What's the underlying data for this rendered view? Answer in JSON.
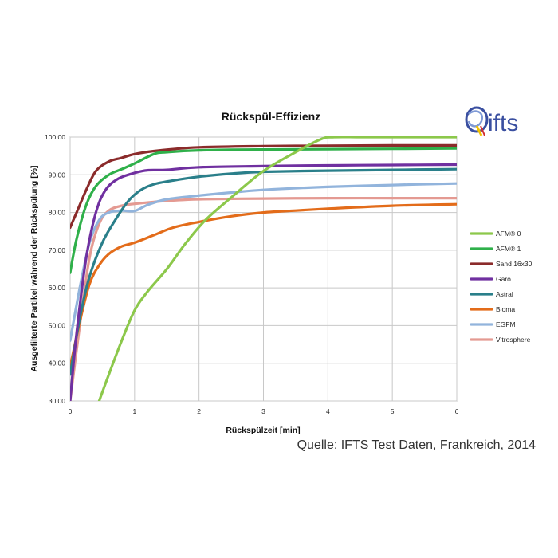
{
  "source_note": "Quelle: IFTS Test Daten, Frankreich, 2014",
  "logo": {
    "text": "ifts",
    "colors": {
      "blue": "#3a4fa0",
      "yellow": "#f2c200",
      "red": "#d32f2f"
    }
  },
  "chart_data": {
    "type": "line",
    "title": "Rückspül-Effizienz",
    "xlabel": "Rückspülzeit [min]",
    "ylabel": "Ausgefilterte Partikel während der Rückspülung [%]",
    "xlim": [
      0,
      6
    ],
    "ylim": [
      30,
      100
    ],
    "x_ticks": [
      "0",
      "1",
      "2",
      "3",
      "4",
      "5",
      "6"
    ],
    "y_ticks": [
      "30.00",
      "40.00",
      "50.00",
      "60.00",
      "70.00",
      "80.00",
      "90.00",
      "100.00"
    ],
    "grid": true,
    "legend_position": "right",
    "series": [
      {
        "name": "AFM® 0",
        "color": "#8cc84b",
        "x": [
          0.45,
          0.6,
          0.8,
          1.0,
          1.2,
          1.5,
          1.8,
          2.1,
          2.5,
          3.0,
          3.5,
          3.9,
          4.1,
          4.5,
          5.0,
          6.0
        ],
        "y": [
          30,
          37,
          46,
          54,
          59,
          65,
          72,
          78,
          84,
          91,
          96,
          99.5,
          100,
          100,
          100,
          100
        ]
      },
      {
        "name": "AFM® 1",
        "color": "#2fb04a",
        "x": [
          0,
          0.1,
          0.25,
          0.4,
          0.6,
          0.8,
          1.0,
          1.3,
          1.5,
          2.0,
          3.0,
          4.0,
          5.0,
          6.0
        ],
        "y": [
          64,
          73,
          82,
          87,
          90,
          91.5,
          93,
          95.5,
          96,
          96.5,
          96.7,
          96.8,
          96.9,
          97
        ]
      },
      {
        "name": "Sand 16x30",
        "color": "#8b2b2b",
        "x": [
          0,
          0.1,
          0.25,
          0.4,
          0.6,
          0.8,
          1.0,
          1.3,
          1.6,
          2.0,
          3.0,
          4.0,
          5.0,
          6.0
        ],
        "y": [
          76,
          80,
          86,
          91,
          93.5,
          94.5,
          95.5,
          96.3,
          96.8,
          97.3,
          97.6,
          97.7,
          97.8,
          97.8
        ]
      },
      {
        "name": "Garo",
        "color": "#7030a0",
        "x": [
          0,
          0.1,
          0.25,
          0.4,
          0.55,
          0.75,
          1.0,
          1.2,
          1.5,
          2.0,
          3.0,
          4.0,
          5.0,
          6.0
        ],
        "y": [
          30,
          48,
          68,
          80,
          86,
          89,
          90.5,
          91.2,
          91.3,
          92,
          92.3,
          92.5,
          92.6,
          92.7
        ]
      },
      {
        "name": "Astral",
        "color": "#2a7f8a",
        "x": [
          0,
          0.15,
          0.3,
          0.5,
          0.7,
          0.9,
          1.1,
          1.3,
          1.6,
          2.0,
          2.5,
          3.0,
          4.0,
          5.0,
          6.0
        ],
        "y": [
          37,
          52,
          63,
          72,
          78,
          83,
          86,
          87.5,
          88.5,
          89.5,
          90.3,
          90.8,
          91.1,
          91.3,
          91.5
        ]
      },
      {
        "name": "Bioma",
        "color": "#e36c1a",
        "x": [
          0,
          0.15,
          0.3,
          0.45,
          0.6,
          0.8,
          1.0,
          1.3,
          1.6,
          2.0,
          2.5,
          3.0,
          3.5,
          4.0,
          5.0,
          6.0
        ],
        "y": [
          39,
          51,
          61,
          66,
          69,
          71,
          72,
          74,
          76,
          77.5,
          79,
          80,
          80.5,
          81,
          81.8,
          82.2
        ]
      },
      {
        "name": "EGFM",
        "color": "#92b4dc",
        "x": [
          0,
          0.15,
          0.3,
          0.45,
          0.6,
          0.8,
          1.0,
          1.2,
          1.5,
          2.0,
          2.5,
          3.0,
          4.0,
          5.0,
          6.0
        ],
        "y": [
          46,
          60,
          72,
          78,
          80,
          80.5,
          80.4,
          82,
          83.5,
          84.5,
          85.3,
          86,
          86.8,
          87.3,
          87.7
        ]
      },
      {
        "name": "Vitrosphere",
        "color": "#e49a92",
        "x": [
          0,
          0.15,
          0.3,
          0.45,
          0.6,
          0.8,
          1.0,
          1.3,
          1.6,
          2.0,
          3.0,
          4.0,
          5.0,
          6.0
        ],
        "y": [
          30,
          50,
          68,
          77,
          80.5,
          81.8,
          82.3,
          82.8,
          83.2,
          83.5,
          83.7,
          83.8,
          83.8,
          83.8
        ]
      }
    ]
  }
}
